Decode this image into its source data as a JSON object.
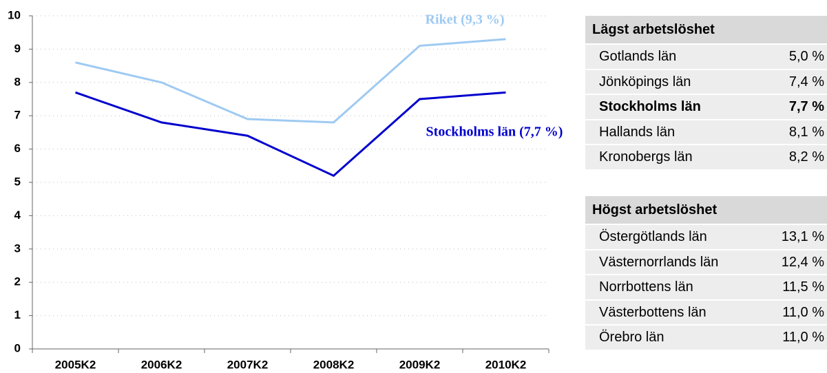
{
  "chart_data": {
    "type": "line",
    "categories": [
      "2005K2",
      "2006K2",
      "2007K2",
      "2008K2",
      "2009K2",
      "2010K2"
    ],
    "series": [
      {
        "name": "Riket (9,3 %)",
        "color": "#9ecaf2",
        "values": [
          8.6,
          8.0,
          6.9,
          6.8,
          9.1,
          9.3
        ]
      },
      {
        "name": "Stockholms län (7,7 %)",
        "color": "#0000cc",
        "values": [
          7.7,
          6.8,
          6.4,
          5.2,
          7.5,
          7.7
        ]
      }
    ],
    "ylim": [
      0,
      10
    ],
    "yticks": [
      0,
      1,
      2,
      3,
      4,
      5,
      6,
      7,
      8,
      9,
      10
    ],
    "grid": true
  },
  "tables": [
    {
      "title": "Lägst arbetslöshet",
      "bold_row": 2,
      "rows": [
        [
          "Gotlands län",
          "5,0 %"
        ],
        [
          "Jönköpings län",
          "7,4 %"
        ],
        [
          "Stockholms län",
          "7,7 %"
        ],
        [
          "Hallands län",
          "8,1 %"
        ],
        [
          "Kronobergs län",
          "8,2 %"
        ]
      ]
    },
    {
      "title": "Högst arbetslöshet",
      "rows": [
        [
          "Östergötlands län",
          "13,1 %"
        ],
        [
          "Västernorrlands län",
          "12,4 %"
        ],
        [
          "Norrbottens län",
          "11,5 %"
        ],
        [
          "Västerbottens län",
          "11,0 %"
        ],
        [
          "Örebro län",
          "11,0 %"
        ]
      ]
    }
  ]
}
